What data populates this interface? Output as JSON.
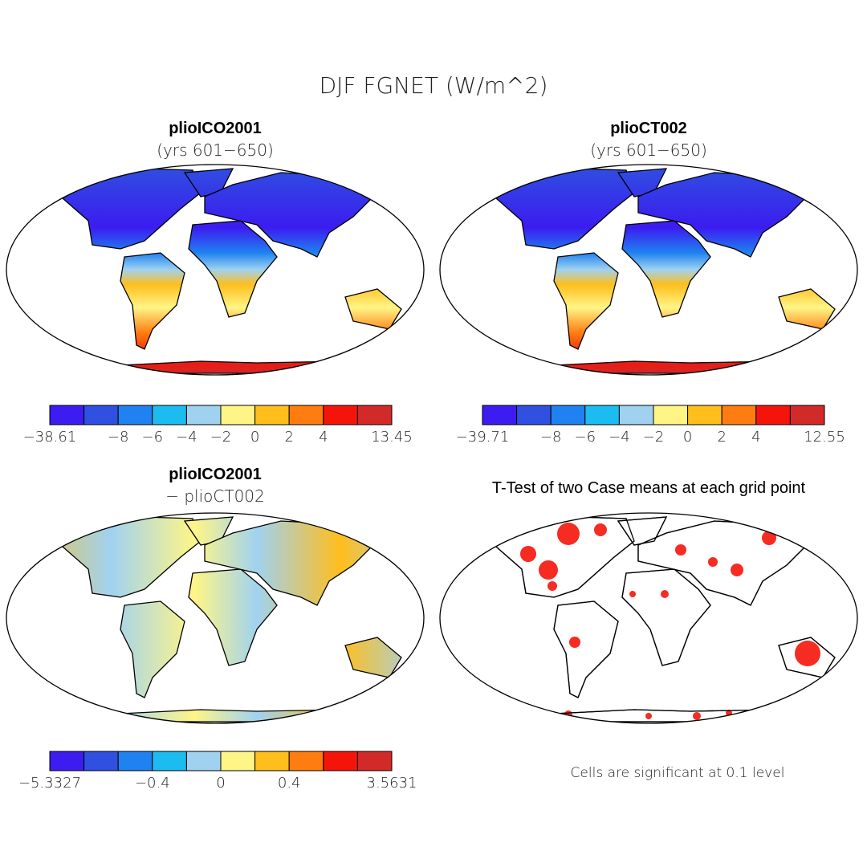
{
  "title": "DJF FGNET (W/m^2)",
  "colors": [
    "#3c1cf0",
    "#2f50e0",
    "#1f82f0",
    "#1cbcf0",
    "#a0d2f0",
    "#fff587",
    "#ffbe1c",
    "#ff7d10",
    "#f5140a",
    "#d22a28"
  ],
  "panels": [
    {
      "title": "plioICO2001",
      "subtitle": "(yrs 601−650)",
      "colorbar_labels": [
        "−38.61",
        "−8",
        "−6",
        "−4",
        "−2",
        "0",
        "2",
        "4",
        "13.45"
      ]
    },
    {
      "title": "plioCT002",
      "subtitle": "(yrs 601−650)",
      "colorbar_labels": [
        "−39.71",
        "−8",
        "−6",
        "−4",
        "−2",
        "0",
        "2",
        "4",
        "12.55"
      ]
    },
    {
      "title": "plioICO2001",
      "subtitle": "− plioCT002",
      "colorbar_labels": [
        "−5.3327",
        "−0.4",
        "0",
        "0.4",
        "3.5631"
      ]
    },
    {
      "title": "T-Test of two Case means at each grid point",
      "note": "Cells are significant at 0.1 level"
    }
  ]
}
